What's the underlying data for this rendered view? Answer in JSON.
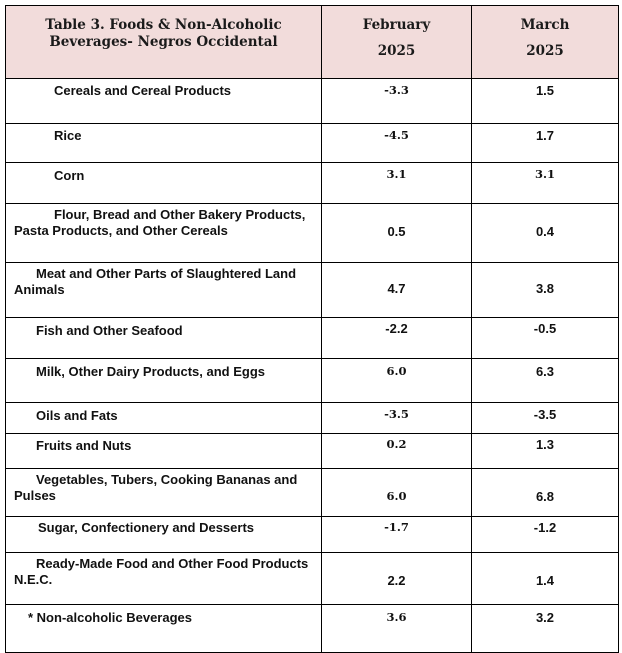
{
  "table": {
    "title": "Table 3. Foods & Non-Alcoholic Beverages- Negros Occidental",
    "columns": [
      {
        "month": "February",
        "year": "2025"
      },
      {
        "month": "March",
        "year": "2025"
      }
    ],
    "rows": [
      {
        "label": "Cereals and Cereal Products",
        "feb": "-3.3",
        "mar": "1.5"
      },
      {
        "label": "Rice",
        "feb": "-4.5",
        "mar": "1.7"
      },
      {
        "label": "Corn",
        "feb": "3.1",
        "mar": "3.1"
      },
      {
        "label": "Flour, Bread and Other Bakery Products, Pasta Products, and Other Cereals",
        "feb": "0.5",
        "mar": "0.4"
      },
      {
        "label": "Meat and Other Parts of Slaughtered Land Animals",
        "feb": "4.7",
        "mar": "3.8"
      },
      {
        "label": "Fish and Other Seafood",
        "feb": "-2.2",
        "mar": "-0.5"
      },
      {
        "label": "Milk, Other Dairy Products, and Eggs",
        "feb": "6.0",
        "mar": "6.3"
      },
      {
        "label": "Oils and Fats",
        "feb": "-3.5",
        "mar": "-3.5"
      },
      {
        "label": "Fruits and Nuts",
        "feb": "0.2",
        "mar": "1.3"
      },
      {
        "label": "Vegetables, Tubers, Cooking Bananas and Pulses",
        "feb": "6.0",
        "mar": "6.8"
      },
      {
        "label": "Sugar, Confectionery and Desserts",
        "feb": "-1.7",
        "mar": "-1.2"
      },
      {
        "label": "Ready-Made Food and Other Food Products N.E.C.",
        "feb": "2.2",
        "mar": "1.4"
      },
      {
        "label": "* Non-alcoholic Beverages",
        "feb": "3.6",
        "mar": "3.2"
      }
    ]
  }
}
